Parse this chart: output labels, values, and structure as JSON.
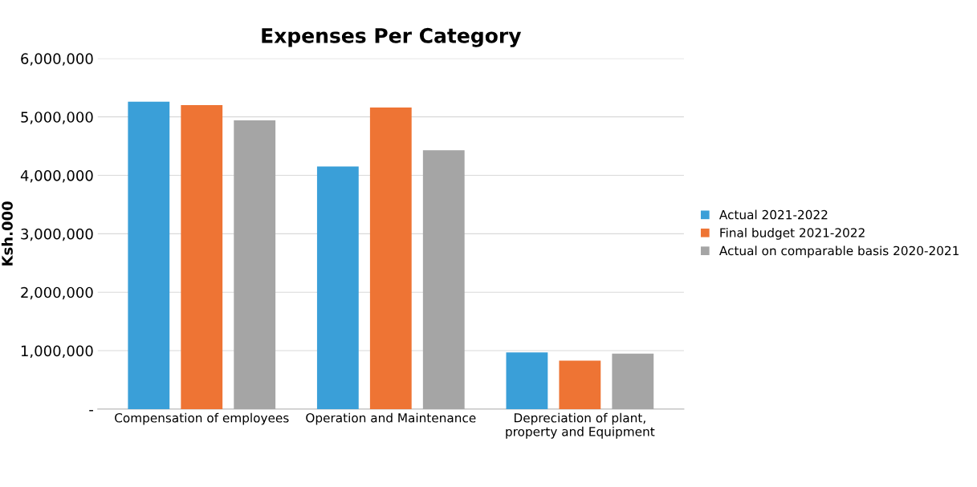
{
  "chart_data": {
    "type": "bar",
    "title": "Expenses Per Category",
    "ylabel": "Ksh.000",
    "categories": [
      "Compensation of employees",
      "Operation and Maintenance",
      "Depreciation of plant,\nproperty and Equipment"
    ],
    "series": [
      {
        "name": "Actual 2021-2022",
        "color": "#3a9fd8",
        "values": [
          5260000,
          4150000,
          970000
        ]
      },
      {
        "name": "Final budget 2021-2022",
        "color": "#ee7434",
        "values": [
          5200000,
          5160000,
          830000
        ]
      },
      {
        "name": "Actual on comparable basis 2020-2021",
        "color": "#a5a5a5",
        "values": [
          4940000,
          4430000,
          950000
        ]
      }
    ],
    "ylim": [
      0,
      6000000
    ],
    "yticks": [
      {
        "value": 0,
        "label": "-"
      },
      {
        "value": 1000000,
        "label": "1,000,000"
      },
      {
        "value": 2000000,
        "label": "2,000,000"
      },
      {
        "value": 3000000,
        "label": "3,000,000"
      },
      {
        "value": 4000000,
        "label": "4,000,000"
      },
      {
        "value": 5000000,
        "label": "5,000,000"
      },
      {
        "value": 6000000,
        "label": "6,000,000"
      }
    ],
    "grid": "y",
    "legend": "right"
  }
}
